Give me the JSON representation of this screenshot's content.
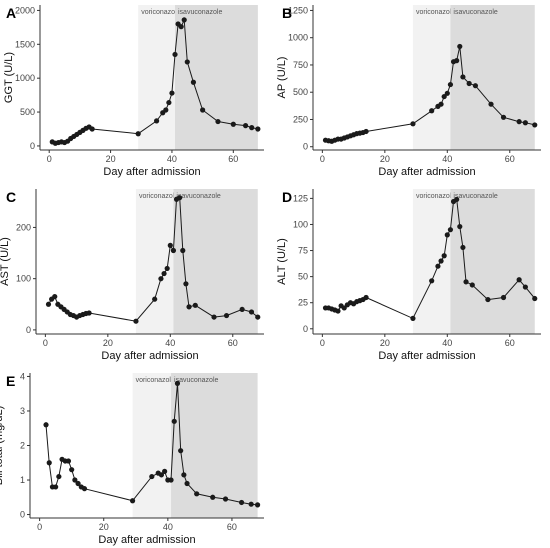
{
  "figure": {
    "colors": {
      "voriconazole_band": "#f2f2f2",
      "isavuconazole_band": "#dcdcdc",
      "series": "#1a1a1a",
      "axis": "#333333"
    }
  },
  "chart_data": [
    {
      "type": "line",
      "panel": "A",
      "xlabel": "Day after admission",
      "ylabel": "GGT (U/L)",
      "xlim": [
        -3,
        70
      ],
      "ylim": [
        -60,
        2080
      ],
      "xticks": [
        0,
        20,
        40,
        60
      ],
      "yticks": [
        0,
        500,
        1000,
        1500,
        2000
      ],
      "grid": false,
      "bands": [
        {
          "label": "voriconazole",
          "x_start": 29,
          "x_end": 41
        },
        {
          "label": "isavuconazole",
          "x_start": 41,
          "x_end": 68
        }
      ],
      "series": [
        {
          "x": [
            1,
            2,
            3,
            4,
            5,
            6,
            7,
            8,
            9,
            10,
            11,
            12,
            13,
            14,
            29,
            35,
            37,
            38,
            39,
            40,
            41,
            42,
            43,
            44,
            45,
            47,
            50,
            55,
            60,
            64,
            66,
            68
          ],
          "y": [
            60,
            40,
            50,
            60,
            50,
            70,
            110,
            140,
            170,
            200,
            230,
            260,
            280,
            250,
            180,
            370,
            490,
            530,
            640,
            780,
            1350,
            1800,
            1760,
            1860,
            1240,
            940,
            530,
            360,
            320,
            300,
            270,
            250
          ]
        }
      ]
    },
    {
      "type": "line",
      "panel": "B",
      "xlabel": "Day after admission",
      "ylabel": "AP (U/L)",
      "xlim": [
        -3,
        70
      ],
      "ylim": [
        -30,
        1300
      ],
      "xticks": [
        0,
        20,
        40,
        60
      ],
      "yticks": [
        0,
        250,
        500,
        750,
        1000,
        1250
      ],
      "grid": false,
      "bands": [
        {
          "label": "voriconazole",
          "x_start": 29,
          "x_end": 41
        },
        {
          "label": "isavuconazole",
          "x_start": 41,
          "x_end": 68
        }
      ],
      "series": [
        {
          "x": [
            1,
            2,
            3,
            4,
            5,
            6,
            7,
            8,
            9,
            10,
            11,
            12,
            13,
            14,
            29,
            35,
            37,
            38,
            39,
            40,
            41,
            42,
            43,
            44,
            45,
            47,
            49,
            54,
            58,
            63,
            65,
            68
          ],
          "y": [
            60,
            55,
            50,
            60,
            70,
            70,
            80,
            90,
            100,
            110,
            120,
            125,
            130,
            140,
            210,
            330,
            370,
            390,
            460,
            490,
            570,
            780,
            790,
            920,
            640,
            580,
            560,
            390,
            270,
            230,
            220,
            200
          ]
        }
      ]
    },
    {
      "type": "line",
      "panel": "C",
      "xlabel": "Day after admission",
      "ylabel": "AST (U/L)",
      "xlim": [
        -3,
        70
      ],
      "ylim": [
        -8,
        275
      ],
      "xticks": [
        0,
        20,
        40,
        60
      ],
      "yticks": [
        0,
        100,
        200
      ],
      "grid": false,
      "bands": [
        {
          "label": "voriconazole",
          "x_start": 29,
          "x_end": 41
        },
        {
          "label": "isavuconazole",
          "x_start": 41,
          "x_end": 68
        }
      ],
      "series": [
        {
          "x": [
            1,
            2,
            3,
            4,
            5,
            6,
            7,
            8,
            9,
            10,
            11,
            12,
            13,
            14,
            29,
            35,
            37,
            38,
            39,
            40,
            41,
            42,
            43,
            44,
            45,
            46,
            48,
            54,
            58,
            63,
            66,
            68
          ],
          "y": [
            50,
            60,
            65,
            50,
            45,
            40,
            35,
            30,
            28,
            25,
            28,
            30,
            32,
            33,
            17,
            60,
            100,
            110,
            120,
            165,
            155,
            255,
            258,
            155,
            90,
            45,
            48,
            25,
            28,
            40,
            35,
            25
          ]
        }
      ]
    },
    {
      "type": "line",
      "panel": "D",
      "xlabel": "Day after admission",
      "ylabel": "ALT (U/L)",
      "xlim": [
        -3,
        70
      ],
      "ylim": [
        -5,
        134
      ],
      "xticks": [
        0,
        20,
        40,
        60
      ],
      "yticks": [
        0,
        25,
        50,
        75,
        100,
        125
      ],
      "grid": false,
      "bands": [
        {
          "label": "voriconazole",
          "x_start": 29,
          "x_end": 41
        },
        {
          "label": "isavuconazole",
          "x_start": 41,
          "x_end": 68
        }
      ],
      "series": [
        {
          "x": [
            1,
            2,
            3,
            4,
            5,
            6,
            7,
            8,
            9,
            10,
            11,
            12,
            13,
            14,
            29,
            35,
            37,
            38,
            39,
            40,
            41,
            42,
            43,
            44,
            45,
            46,
            48,
            53,
            58,
            63,
            65,
            68
          ],
          "y": [
            20,
            20,
            19,
            18,
            17,
            22,
            20,
            23,
            25,
            24,
            26,
            27,
            28,
            30,
            10,
            46,
            60,
            65,
            70,
            90,
            95,
            122,
            124,
            98,
            78,
            45,
            42,
            28,
            30,
            47,
            40,
            29
          ]
        }
      ]
    },
    {
      "type": "line",
      "panel": "E",
      "xlabel": "Day after admission",
      "ylabel": "Bili total (mg/dL)",
      "xlim": [
        -3,
        70
      ],
      "ylim": [
        -0.1,
        4.1
      ],
      "xticks": [
        0,
        20,
        40,
        60
      ],
      "yticks": [
        0,
        1,
        2,
        3,
        4
      ],
      "grid": false,
      "bands": [
        {
          "label": "voriconazole",
          "x_start": 29,
          "x_end": 41
        },
        {
          "label": "isavuconazole",
          "x_start": 41,
          "x_end": 68
        }
      ],
      "series": [
        {
          "x": [
            2,
            3,
            4,
            5,
            6,
            7,
            8,
            9,
            10,
            11,
            12,
            13,
            14,
            29,
            35,
            37,
            38,
            39,
            40,
            41,
            42,
            43,
            44,
            45,
            46,
            49,
            54,
            58,
            63,
            66,
            68
          ],
          "y": [
            2.6,
            1.5,
            0.8,
            0.8,
            1.1,
            1.6,
            1.55,
            1.55,
            1.3,
            1.0,
            0.9,
            0.8,
            0.75,
            0.4,
            1.1,
            1.2,
            1.15,
            1.25,
            1.0,
            1.0,
            2.7,
            3.8,
            1.85,
            1.15,
            0.9,
            0.6,
            0.5,
            0.45,
            0.35,
            0.3,
            0.28
          ]
        }
      ]
    }
  ]
}
